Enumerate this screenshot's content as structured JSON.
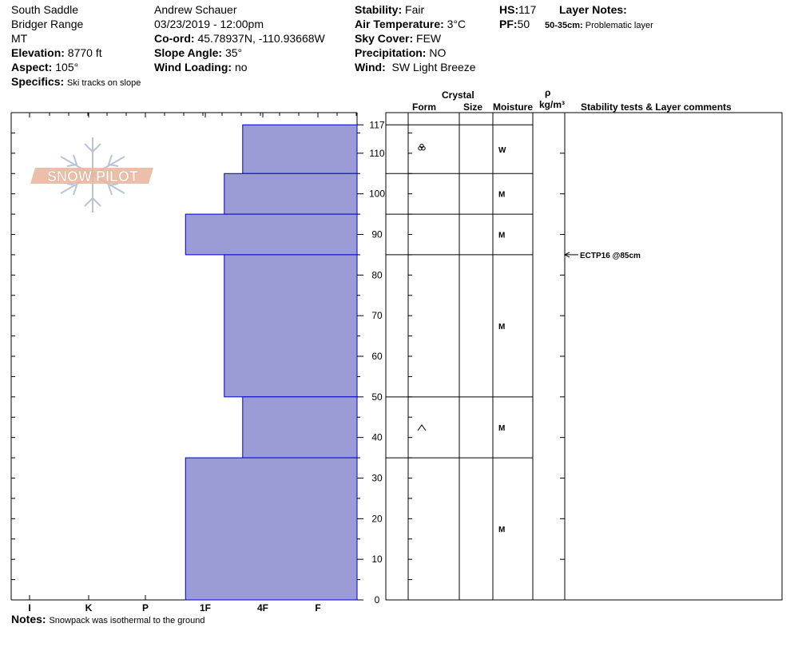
{
  "header": {
    "location": "South Saddle",
    "range": "Bridger Range",
    "state": "MT",
    "elevation_label": "Elevation:",
    "elevation": "8770 ft",
    "aspect_label": "Aspect:",
    "aspect": "105°",
    "specifics_label": "Specifics:",
    "specifics": "Ski tracks on slope",
    "observer": "Andrew Schauer",
    "datetime": "03/23/2019 - 12:00pm",
    "coord_label": "Co-ord:",
    "coord": "45.78937N, -110.93668W",
    "slope_label": "Slope Angle:",
    "slope": "35°",
    "wind_loading_label": "Wind Loading:",
    "wind_loading": "no",
    "stability_label": "Stability:",
    "stability": "Fair",
    "air_temp_label": "Air Temperature:",
    "air_temp": "3°C",
    "sky_label": "Sky Cover:",
    "sky": "FEW",
    "precip_label": "Precipitation:",
    "precip": "NO",
    "wind_label": "Wind:",
    "wind": "SW Light Breeze",
    "hs_label": "HS:",
    "hs": "117",
    "pf_label": "PF:",
    "pf": "50",
    "layer_notes_label": "Layer Notes:",
    "layer_note_range": "50-35cm:",
    "layer_note_text": "Problematic layer"
  },
  "columns": {
    "crystal": "Crystal",
    "form": "Form",
    "size": "Size",
    "moisture": "Moisture",
    "rho": "ρ",
    "density_unit": "kg/m³",
    "comments": "Stability tests & Layer comments"
  },
  "logo_text": "SNOW PILOT",
  "notes_label": "Notes:",
  "notes": "Snowpack was isothermal to the ground",
  "colors": {
    "hardness_fill": "#9b9bd6",
    "hardness_stroke": "#0000cc",
    "logo": "#e8b49a",
    "logo_flake": "#b8c4d4"
  },
  "chart_data": {
    "type": "bar",
    "orientation": "horizontal",
    "y_axis": {
      "range": [
        0,
        117
      ],
      "ticks": [
        0,
        10,
        20,
        30,
        40,
        50,
        60,
        70,
        80,
        90,
        100,
        110,
        117
      ]
    },
    "x_axis": {
      "categories": [
        "I",
        "K",
        "P",
        "1F",
        "4F",
        "F"
      ],
      "reversed": true
    },
    "layers": [
      {
        "top": 117,
        "bottom": 105,
        "hardness": "4F-",
        "hardness_value": 1.35,
        "form": "melt-forms-icon",
        "moisture": "W"
      },
      {
        "top": 105,
        "bottom": 95,
        "hardness": "4F",
        "hardness_value": 1.67,
        "form": "",
        "moisture": "M"
      },
      {
        "top": 95,
        "bottom": 85,
        "hardness": "1F-",
        "hardness_value": 2.33,
        "form": "",
        "moisture": "M"
      },
      {
        "top": 85,
        "bottom": 50,
        "hardness": "4F",
        "hardness_value": 1.67,
        "form": "",
        "moisture": "M"
      },
      {
        "top": 50,
        "bottom": 35,
        "hardness": "4F-",
        "hardness_value": 1.35,
        "form": "depth-hoar-icon",
        "moisture": "M"
      },
      {
        "top": 35,
        "bottom": 0,
        "hardness": "1F-",
        "hardness_value": 2.33,
        "form": "",
        "moisture": "M"
      }
    ],
    "stability_tests": [
      {
        "label": "ECTP16 @85cm",
        "depth": 85
      }
    ]
  }
}
